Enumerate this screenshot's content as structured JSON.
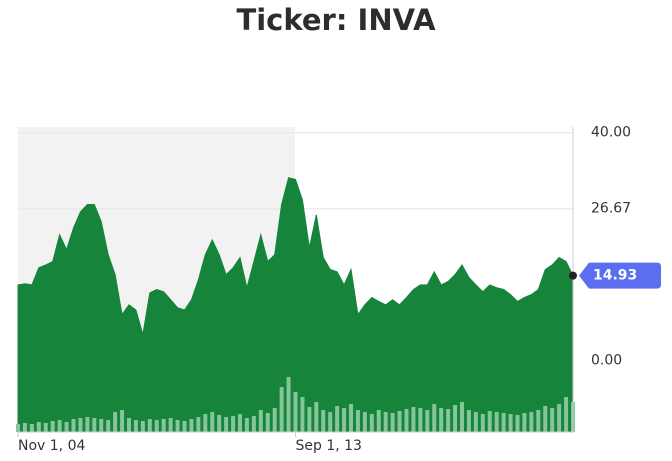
{
  "chart_data": {
    "type": "area",
    "title": "Ticker: INVA",
    "categories": [
      "Nov 1, 04",
      null,
      null,
      null,
      null,
      null,
      null,
      null,
      null,
      null,
      null,
      null,
      null,
      null,
      null,
      null,
      null,
      null,
      null,
      null,
      null,
      null,
      null,
      null,
      null,
      null,
      null,
      null,
      null,
      null,
      null,
      null,
      null,
      null,
      null,
      null,
      null,
      null,
      null,
      null,
      "Sep 1, 13",
      null,
      null,
      null,
      null,
      null,
      null,
      null,
      null,
      null,
      null,
      null,
      null,
      null,
      null,
      null,
      null,
      null,
      null,
      null,
      null,
      null,
      null,
      null,
      null,
      null,
      null,
      null,
      null,
      null,
      null,
      null,
      null,
      null,
      null,
      null,
      null,
      null,
      null,
      null,
      null
    ],
    "series": [
      {
        "color": "#16843b",
        "values": [
          13.3,
          13.5,
          13.3,
          16.3,
          16.8,
          17.4,
          22.1,
          19.5,
          23.3,
          26.1,
          27.4,
          27.4,
          24.4,
          18.6,
          15.1,
          8.1,
          9.8,
          8.9,
          4.6,
          11.9,
          12.5,
          12.1,
          10.7,
          9.3,
          8.9,
          10.7,
          14.2,
          18.6,
          21.2,
          18.6,
          15.1,
          16.3,
          18.1,
          12.8,
          17.4,
          22.1,
          17.4,
          18.6,
          27.4,
          32.1,
          31.8,
          28.2,
          19.8,
          25.6,
          18.1,
          16.0,
          15.6,
          13.3,
          16.0,
          8.1,
          9.8,
          11.1,
          10.4,
          9.8,
          10.7,
          9.8,
          11.1,
          12.5,
          13.3,
          13.3,
          15.6,
          13.3,
          13.9,
          15.1,
          16.8,
          14.6,
          13.3,
          12.1,
          13.3,
          12.8,
          12.5,
          11.6,
          10.4,
          11.1,
          11.6,
          12.5,
          16.0,
          16.8,
          18.1,
          17.4,
          14.93
        ]
      }
    ],
    "volume": [
      8,
      9,
      8,
      10,
      9,
      11,
      12,
      10,
      13,
      14,
      15,
      14,
      13,
      12,
      20,
      22,
      14,
      12,
      11,
      13,
      12,
      13,
      14,
      12,
      11,
      13,
      15,
      18,
      20,
      17,
      15,
      16,
      18,
      14,
      16,
      22,
      19,
      24,
      45,
      55,
      40,
      35,
      25,
      30,
      22,
      20,
      26,
      24,
      28,
      22,
      20,
      18,
      22,
      20,
      19,
      21,
      23,
      25,
      24,
      22,
      28,
      24,
      23,
      27,
      30,
      22,
      20,
      18,
      21,
      20,
      19,
      18,
      17,
      19,
      20,
      22,
      26,
      24,
      28,
      35,
      30
    ],
    "vlim": [
      0,
      100
    ],
    "color_volume": "#86c49a",
    "ylim": [
      -12.5,
      41
    ],
    "yticks": [
      {
        "value": 0,
        "label": "0.00"
      },
      26.67,
      {
        "value": 40,
        "label": "40.00"
      }
    ],
    "grid": true,
    "marker_color": "#5b6ef0"
  }
}
